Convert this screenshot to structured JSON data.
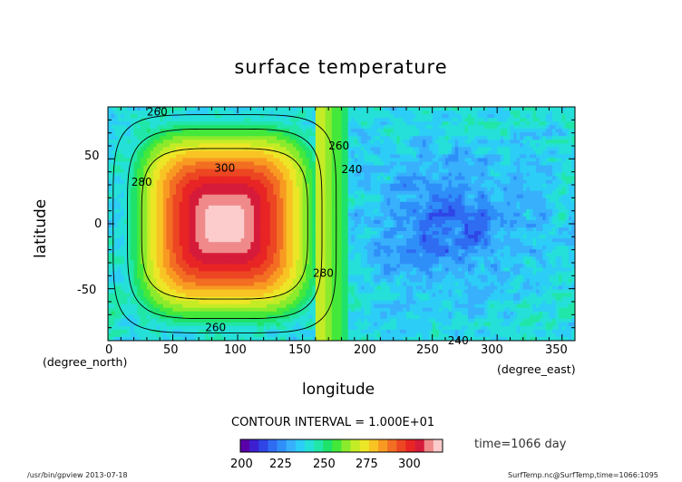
{
  "chart_data": {
    "type": "heatmap",
    "title": "surface temperature",
    "xlabel": "longitude",
    "ylabel": "latitude",
    "x_unit": "(degree_east)",
    "y_unit": "(degree_north)",
    "xlim": [
      0,
      360
    ],
    "ylim": [
      -90,
      90
    ],
    "x_ticks": [
      "0",
      "50",
      "100",
      "150",
      "200",
      "250",
      "300",
      "350"
    ],
    "y_ticks": [
      "-50",
      "0",
      "50"
    ],
    "contour_interval_text": "CONTOUR INTERVAL = 1.000E+01",
    "contour_labels": [
      "260",
      "260",
      "280",
      "300",
      "260",
      "240",
      "280",
      "240"
    ],
    "colorbar": {
      "range": [
        195,
        320
      ],
      "step": 5,
      "tick_labels": [
        "200",
        "225",
        "250",
        "275",
        "300"
      ]
    },
    "field_summary": {
      "hot_center_lon": 90,
      "hot_center_lat": 0,
      "max_value": 305,
      "cold_region_min": 205
    }
  },
  "info": {
    "time_text": "time=1066 day",
    "left_footer": "/usr/bin/gpview  2013-07-18",
    "right_footer": "SurfTemp.nc@SurfTemp,time=1066:1095"
  }
}
